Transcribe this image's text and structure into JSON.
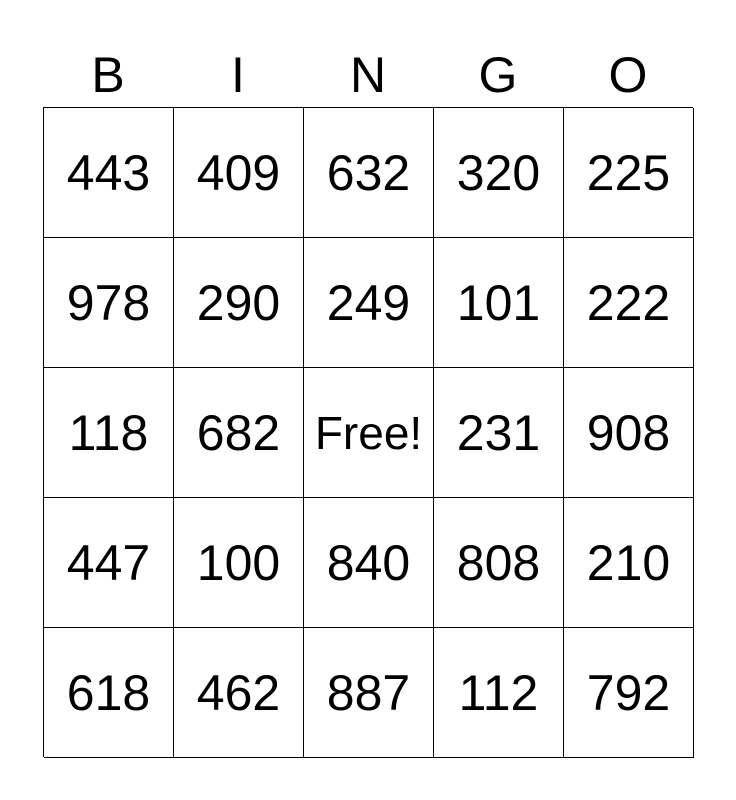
{
  "header": [
    "B",
    "I",
    "N",
    "G",
    "O"
  ],
  "rows": [
    [
      "443",
      "409",
      "632",
      "320",
      "225"
    ],
    [
      "978",
      "290",
      "249",
      "101",
      "222"
    ],
    [
      "118",
      "682",
      "Free!",
      "231",
      "908"
    ],
    [
      "447",
      "100",
      "840",
      "808",
      "210"
    ],
    [
      "618",
      "462",
      "887",
      "112",
      "792"
    ]
  ]
}
